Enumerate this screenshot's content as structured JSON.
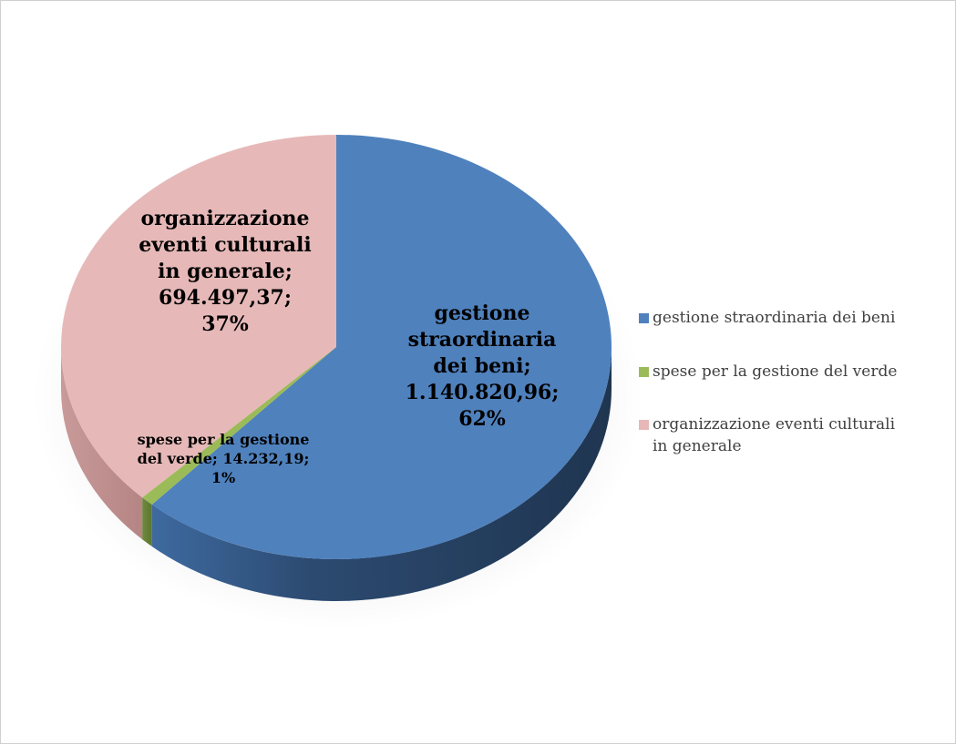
{
  "chart_data": {
    "type": "pie",
    "title": "",
    "three_d": true,
    "legend_position": "right",
    "categories": [
      "gestione straordinaria dei beni",
      "spese per la gestione del verde",
      "organizzazione eventi culturali in generale"
    ],
    "values": [
      1140820.96,
      14232.19,
      694497.37
    ],
    "value_labels": [
      "1.140.820,96",
      "14.232,19",
      "694.497,37"
    ],
    "percent_labels": [
      "62%",
      "1%",
      "37%"
    ],
    "colors": [
      "#4f81bd",
      "#9bbb59",
      "#e6b9b8"
    ],
    "data_labels": [
      [
        "gestione",
        "straordinaria",
        "dei beni;",
        "1.140.820,96;",
        "62%"
      ],
      [
        "spese per la gestione",
        "del verde; 14.232,19;",
        "1%"
      ],
      [
        "organizzazione",
        "eventi culturali",
        "in generale;",
        "694.497,37;",
        "37%"
      ]
    ]
  },
  "legend": {
    "items": [
      {
        "label_lines": [
          "gestione straordinaria dei beni"
        ],
        "color": "#4f81bd"
      },
      {
        "label_lines": [
          "spese per la gestione del verde"
        ],
        "color": "#9bbb59"
      },
      {
        "label_lines": [
          "organizzazione eventi culturali",
          "in generale"
        ],
        "color": "#e6b9b8"
      }
    ]
  }
}
